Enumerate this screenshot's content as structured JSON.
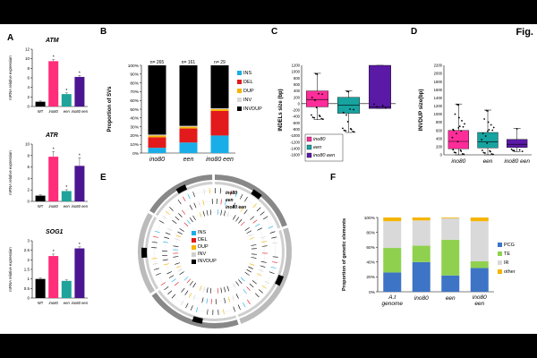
{
  "figure": {
    "label": "Fig.",
    "panels": [
      "A",
      "B",
      "C",
      "D",
      "E",
      "F"
    ]
  },
  "panelA": {
    "charts": [
      {
        "title": "ATM",
        "ylabel": "mRNA relative expression",
        "categories": [
          "WT",
          "ino80",
          "een",
          "ino80 een"
        ],
        "values": [
          1.0,
          9.5,
          2.6,
          6.2
        ],
        "errors": [
          0.15,
          0.35,
          0.25,
          0.3
        ],
        "yticks": [
          "0",
          "2",
          "4",
          "6",
          "8",
          "10",
          "12"
        ],
        "ymax": 12,
        "stars": [
          false,
          true,
          true,
          true
        ],
        "colors": [
          "#000000",
          "#ff2d7a",
          "#1fa39a",
          "#4b1591"
        ]
      },
      {
        "title": "ATR",
        "ylabel": "mRNA relative expression",
        "categories": [
          "WT",
          "ino80",
          "een",
          "ino80 een"
        ],
        "values": [
          1.0,
          7.8,
          1.8,
          6.2
        ],
        "errors": [
          0.15,
          0.9,
          0.25,
          1.4
        ],
        "yticks": [
          "0",
          "2",
          "4",
          "6",
          "8",
          "10"
        ],
        "ymax": 10,
        "stars": [
          false,
          true,
          true,
          true
        ],
        "colors": [
          "#000000",
          "#ff2d7a",
          "#1fa39a",
          "#4b1591"
        ]
      },
      {
        "title": "SOG1",
        "ylabel": "mRNA relative expression",
        "categories": [
          "WT",
          "ino80",
          "een",
          "ino80 een"
        ],
        "values": [
          1.0,
          2.2,
          0.9,
          2.6
        ],
        "errors": [
          0.05,
          0.1,
          0.05,
          0.08
        ],
        "yticks": [
          "0",
          "0.5",
          "1",
          "1.5",
          "2",
          "2.5",
          "3"
        ],
        "ymax": 3,
        "stars": [
          false,
          true,
          false,
          true
        ],
        "colors": [
          "#000000",
          "#ff2d7a",
          "#1fa39a",
          "#4b1591"
        ]
      }
    ]
  },
  "chart_data": [
    {
      "type": "bar",
      "panel": "B",
      "stacked": true,
      "ylabel": "Proportion of SVs",
      "yticks": [
        "0%",
        "10%",
        "20%",
        "30%",
        "40%",
        "50%",
        "60%",
        "70%",
        "80%",
        "90%",
        "100%"
      ],
      "categories": [
        "ino80",
        "een",
        "ino80 een"
      ],
      "counts": [
        "n= 265",
        "n= 161",
        "n= 29"
      ],
      "series": [
        {
          "name": "INS",
          "color": "#1aaee8",
          "values": [
            6,
            12,
            20
          ]
        },
        {
          "name": "DEL",
          "color": "#e31a1c",
          "values": [
            12,
            16,
            28
          ]
        },
        {
          "name": "DUP",
          "color": "#f5b400",
          "values": [
            2,
            2,
            2
          ]
        },
        {
          "name": "INV",
          "color": "#d8d8d8",
          "values": [
            1,
            1,
            1
          ]
        },
        {
          "name": "INVDUP",
          "color": "#000000",
          "values": [
            79,
            69,
            49
          ]
        }
      ]
    },
    {
      "type": "box",
      "panel": "C",
      "ylabel": "INDELs size (bp)",
      "yticks": [
        "1200",
        "1000",
        "800",
        "600",
        "400",
        "200",
        "0",
        "-200",
        "-400",
        "-600",
        "-800",
        "-1000",
        "-1200",
        "-1400",
        "-1600"
      ],
      "categories": [
        "ino80",
        "een",
        "ino80 een"
      ],
      "legend": [
        "ino80",
        "een",
        "ino80 een"
      ],
      "colors": [
        "#ff2d9a",
        "#17a3a0",
        "#5a1aa6"
      ],
      "boxes": [
        {
          "q1": -100,
          "median": 130,
          "q3": 400,
          "min": -500,
          "max": 950
        },
        {
          "q1": -300,
          "median": -50,
          "q3": 200,
          "min": -900,
          "max": 400
        },
        {
          "q1": -150,
          "median": -100,
          "q3": 1200,
          "min": -150,
          "max": 1200
        }
      ]
    },
    {
      "type": "box",
      "panel": "D",
      "ylabel": "INVDUP size(bp)",
      "yticks": [
        "0",
        "200",
        "400",
        "600",
        "800",
        "1000",
        "1200",
        "1400",
        "1600",
        "1800",
        "2000",
        "2200"
      ],
      "categories": [
        "ino80",
        "een",
        "ino80 een"
      ],
      "colors": [
        "#ff2d9a",
        "#17a3a0",
        "#5a1aa6"
      ],
      "boxes": [
        {
          "q1": 150,
          "median": 330,
          "q3": 600,
          "min": 0,
          "max": 1250
        },
        {
          "q1": 170,
          "median": 320,
          "q3": 550,
          "min": 0,
          "max": 1100
        },
        {
          "q1": 180,
          "median": 260,
          "q3": 380,
          "min": 80,
          "max": 650
        }
      ]
    },
    {
      "type": "bar",
      "panel": "F",
      "stacked": true,
      "ylabel": "Proportion of genetic elements",
      "yticks": [
        "0%",
        "20%",
        "40%",
        "60%",
        "80%",
        "100%"
      ],
      "categories": [
        "A.t genome",
        "ino80",
        "een",
        "ino80 een"
      ],
      "series": [
        {
          "name": "PCG",
          "color": "#3d74c6",
          "values": [
            26,
            40,
            22,
            32
          ]
        },
        {
          "name": "TE",
          "color": "#8fd14f",
          "values": [
            33,
            22,
            48,
            9
          ]
        },
        {
          "name": "IR",
          "color": "#d9d9d9",
          "values": [
            36,
            34,
            29,
            54
          ]
        },
        {
          "name": "other",
          "color": "#f5b400",
          "values": [
            5,
            4,
            1,
            5
          ]
        }
      ]
    }
  ],
  "panelE": {
    "track_labels": [
      "ino80",
      "een",
      "ino80 een"
    ],
    "legend": [
      {
        "name": "INS",
        "color": "#1aaee8"
      },
      {
        "name": "DEL",
        "color": "#e31a1c"
      },
      {
        "name": "DUP",
        "color": "#f5b400"
      },
      {
        "name": "INV",
        "color": "#d0d0d0"
      },
      {
        "name": "INVDUP",
        "color": "#000000"
      }
    ]
  }
}
